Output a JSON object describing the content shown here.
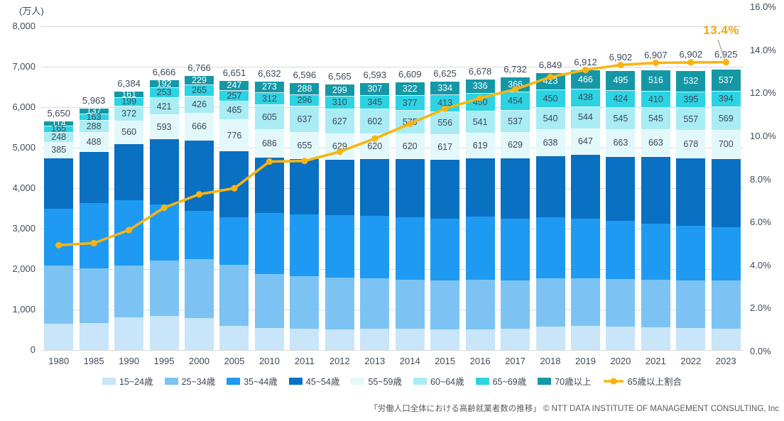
{
  "unit_label": "(万人)",
  "annotation": {
    "text": "13.4%",
    "color": "#f0a70b"
  },
  "footer": "「労働人口全体における高齢就業者数の推移」 © NTT DATA INSTITUTE OF MANAGEMENT CONSULTING, Inc",
  "chart_data": {
    "type": "bar",
    "subtype": "stacked-bar-with-line-combo",
    "grid": "horizontal",
    "legend_position": "bottom",
    "categories": [
      "1980",
      "1985",
      "1990",
      "1995",
      "2000",
      "2005",
      "2010",
      "2011",
      "2012",
      "2013",
      "2014",
      "2015",
      "2016",
      "2017",
      "2018",
      "2019",
      "2020",
      "2021",
      "2022",
      "2023"
    ],
    "left_axis": {
      "title": "(万人)",
      "min": 0,
      "max": 8000,
      "tick_step": 1000,
      "ticks": [
        "8,000",
        "7,000",
        "6,000",
        "5,000",
        "4,000",
        "3,000",
        "2,000",
        "1,000",
        "0"
      ]
    },
    "right_axis": {
      "min": 0,
      "max": 16,
      "tick_step": 2,
      "ticks": [
        "16.0%",
        "14.0%",
        "12.0%",
        "10.0%",
        "8.0%",
        "6.0%",
        "4.0%",
        "2.0%",
        "0.0%"
      ],
      "tick_values": [
        16,
        14,
        12,
        10,
        8,
        6,
        4,
        2,
        0
      ]
    },
    "totals_labels": [
      "5,650",
      "5,963",
      "6,384",
      "6,666",
      "6,766",
      "6,651",
      "6,632",
      "6,596",
      "6,565",
      "6,593",
      "6,609",
      "6,625",
      "6,678",
      "6,732",
      "6,849",
      "6,912",
      "6,902",
      "6,907",
      "6,902",
      "6,925"
    ],
    "series": [
      {
        "name": "15~24歳",
        "color": "#c9e5f9",
        "labels_shown": false,
        "label_color": "#3d4858",
        "values": [
          645,
          674,
          812,
          842,
          784,
          591,
          544,
          525,
          515,
          518,
          518,
          516,
          512,
          519,
          581,
          597,
          582,
          557,
          537,
          527
        ]
      },
      {
        "name": "25~34歳",
        "color": "#7cc3f3",
        "labels_shown": false,
        "label_color": "#3d4858",
        "values": [
          1449,
          1349,
          1276,
          1374,
          1462,
          1509,
          1329,
          1300,
          1280,
          1255,
          1223,
          1203,
          1217,
          1205,
          1186,
          1180,
          1177,
          1183,
          1190,
          1186
        ]
      },
      {
        "name": "35~44歳",
        "color": "#1e9af2",
        "labels_shown": false,
        "label_color": "#3d4858",
        "values": [
          1404,
          1610,
          1619,
          1375,
          1198,
          1181,
          1518,
          1535,
          1539,
          1541,
          1535,
          1533,
          1568,
          1530,
          1509,
          1475,
          1427,
          1392,
          1351,
          1320
        ]
      },
      {
        "name": "45~54歳",
        "color": "#0a70c2",
        "labels_shown": false,
        "label_color": "#ffffff",
        "values": [
          1240,
          1254,
          1385,
          1616,
          1736,
          1625,
          1365,
          1360,
          1366,
          1405,
          1439,
          1453,
          1435,
          1492,
          1522,
          1565,
          1589,
          1641,
          1662,
          1692
        ]
      },
      {
        "name": "55~59歳",
        "color": "#e2f8fb",
        "labels_shown": true,
        "label_color": "#3d4858",
        "values": [
          385,
          488,
          560,
          593,
          666,
          776,
          686,
          655,
          629,
          620,
          620,
          617,
          619,
          629,
          638,
          647,
          663,
          663,
          678,
          700
        ]
      },
      {
        "name": "60~64歳",
        "color": "#a9ecf4",
        "labels_shown": true,
        "label_color": "#3d4858",
        "values": [
          248,
          288,
          372,
          421,
          426,
          465,
          605,
          637,
          627,
          602,
          575,
          556,
          541,
          537,
          540,
          544,
          545,
          545,
          557,
          569
        ]
      },
      {
        "name": "65~69歳",
        "color": "#2bd3e3",
        "labels_shown": true,
        "label_color": "#3d4858",
        "values": [
          165,
          163,
          199,
          253,
          265,
          257,
          312,
          296,
          310,
          345,
          377,
          413,
          450,
          454,
          450,
          438,
          424,
          410,
          395,
          394
        ]
      },
      {
        "name": "70歳以上",
        "color": "#1598a6",
        "labels_shown": true,
        "label_color": "#ffffff",
        "values": [
          114,
          137,
          161,
          192,
          229,
          247,
          273,
          288,
          299,
          307,
          322,
          334,
          336,
          366,
          423,
          466,
          495,
          516,
          532,
          537
        ]
      }
    ],
    "line_series": {
      "name": "65歳以上割合",
      "color": "#f9b412",
      "values_pct": [
        4.94,
        5.03,
        5.64,
        6.68,
        7.3,
        7.58,
        8.82,
        8.85,
        9.28,
        9.89,
        10.58,
        11.28,
        11.77,
        12.18,
        12.75,
        13.08,
        13.31,
        13.41,
        13.43,
        13.44
      ],
      "end_label": "13.4%"
    }
  }
}
